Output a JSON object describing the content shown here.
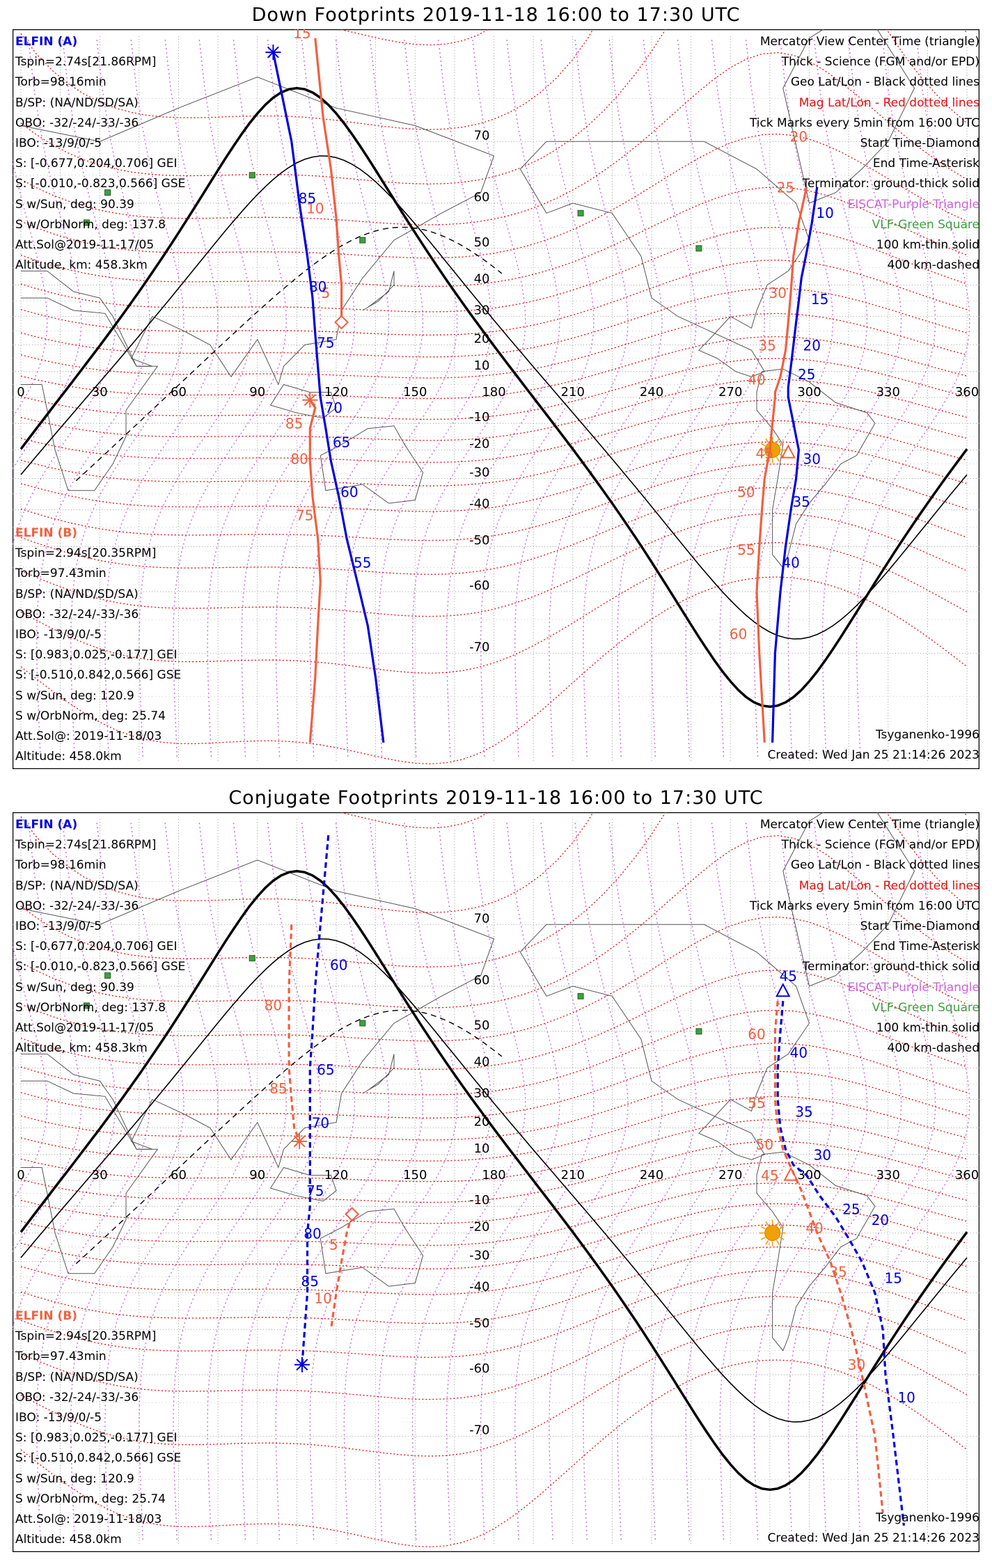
{
  "panels": [
    {
      "id": "down",
      "title": "Down Footprints 2019-11-18 16:00 to 17:30 UTC",
      "elfin_a": {
        "name": "ELFIN (A)",
        "tspin": "Tspin=2.74s[21.86RPM]",
        "torb": "Torb=98.16min",
        "bsp": "B/SP: (NA/ND/SD/SA)",
        "obo": "OBO: -32/-24/-33/-36",
        "ibo": "IBO: -13/9/0/-5",
        "s_gei": "S: [-0.677,0.204,0.706] GEI",
        "s_gse": "S: [-0.010,-0.823,0.566] GSE",
        "s_sun": "S w/Sun, deg: 90.39",
        "s_orb": "S w/OrbNorm, deg: 137.8",
        "attsol": "Att.Sol@2019-11-17/05",
        "alt": "Altitude, km: 458.3km"
      },
      "elfin_b": {
        "name": "ELFIN (B)",
        "tspin": "Tspin=2.94s[20.35RPM]",
        "torb": "Torb=97.43min",
        "bsp": "B/SP: (NA/ND/SD/SA)",
        "obo": "OBO: -32/-24/-33/-36",
        "ibo": "IBO: -13/9/0/-5",
        "s_gei": "S: [0.983,0.025,-0.177] GEI",
        "s_gse": "S: [-0.510,0.842,0.566] GSE",
        "s_sun": "S w/Sun, deg: 120.9",
        "s_orb": "S w/OrbNorm, deg: 25.74",
        "attsol": "Att.Sol@: 2019-11-18/03",
        "alt": "Altitude: 458.0km"
      },
      "legend": {
        "l1": "Mercator View Center Time (triangle)",
        "l2": "Thick - Science (FGM and/or EPD)",
        "l3": "Geo Lat/Lon - Black dotted lines",
        "l4": "Mag Lat/Lon - Red dotted lines",
        "l5": "Tick Marks every 5min from 16:00 UTC",
        "l6": "Start Time-Diamond",
        "l7": "End Time-Asterisk",
        "l8": "Terminator: ground-thick solid",
        "l9": "EISCAT-Purple Triangle",
        "l10": "VLF-Green Square",
        "l11": "100 km-thin solid",
        "l12": "400 km-dashed"
      },
      "model": "Tsyganenko-1996",
      "created": "Created: Wed Jan 25 21:14:26 2023"
    },
    {
      "id": "conjugate",
      "title": "Conjugate Footprints 2019-11-18 16:00 to 17:30 UTC",
      "elfin_a": {
        "name": "ELFIN (A)",
        "tspin": "Tspin=2.74s[21.86RPM]",
        "torb": "Torb=98.16min",
        "bsp": "B/SP: (NA/ND/SD/SA)",
        "obo": "OBO: -32/-24/-33/-36",
        "ibo": "IBO: -13/9/0/-5",
        "s_gei": "S: [-0.677,0.204,0.706] GEI",
        "s_gse": "S: [-0.010,-0.823,0.566] GSE",
        "s_sun": "S w/Sun, deg: 90.39",
        "s_orb": "S w/OrbNorm, deg: 137.8",
        "attsol": "Att.Sol@2019-11-17/05",
        "alt": "Altitude, km: 458.3km"
      },
      "elfin_b": {
        "name": "ELFIN (B)",
        "tspin": "Tspin=2.94s[20.35RPM]",
        "torb": "Torb=97.43min",
        "bsp": "B/SP: (NA/ND/SD/SA)",
        "obo": "OBO: -32/-24/-33/-36",
        "ibo": "IBO: -13/9/0/-5",
        "s_gei": "S: [0.983,0.025,-0.177] GEI",
        "s_gse": "S: [-0.510,0.842,0.566] GSE",
        "s_sun": "S w/Sun, deg: 120.9",
        "s_orb": "S w/OrbNorm, deg: 25.74",
        "attsol": "Att.Sol@: 2019-11-18/03",
        "alt": "Altitude: 458.0km"
      },
      "legend": {
        "l1": "Mercator View Center Time (triangle)",
        "l2": "Thick - Science (FGM and/or EPD)",
        "l3": "Geo Lat/Lon - Black dotted lines",
        "l4": "Mag Lat/Lon - Red dotted lines",
        "l5": "Tick Marks every 5min from 16:00 UTC",
        "l6": "Start Time-Diamond",
        "l7": "End Time-Asterisk",
        "l8": "Terminator: ground-thick solid",
        "l9": "EISCAT-Purple Triangle",
        "l10": "VLF-Green Square",
        "l11": "100 km-thin solid",
        "l12": "400 km-dashed"
      },
      "model": "Tsyganenko-1996",
      "created": "Created: Wed Jan 25 21:14:26 2023"
    }
  ],
  "axes": {
    "lon_ticks": [
      0,
      30,
      60,
      90,
      120,
      150,
      180,
      210,
      240,
      270,
      300,
      330,
      360
    ],
    "lat_ticks": [
      70,
      60,
      50,
      40,
      30,
      20,
      10,
      -10,
      -20,
      -30,
      -40,
      -50,
      -60,
      -70
    ]
  },
  "colors": {
    "elfin_a": "#0000dd",
    "elfin_b": "#f06040",
    "mag_grid": "#e01010",
    "eiscat": "#cc66dd",
    "vlf": "#40a040",
    "sun": "#f0a000"
  },
  "vlf_stations": [
    {
      "lon": 88,
      "lat": 65
    },
    {
      "lon": 33,
      "lat": 62
    },
    {
      "lon": 25,
      "lat": 56
    },
    {
      "lon": 130,
      "lat": 52
    },
    {
      "lon": 213,
      "lat": 58
    },
    {
      "lon": 258,
      "lat": 50
    }
  ],
  "down_tracks": {
    "a": {
      "points": [
        [
          96,
          79
        ],
        [
          103,
          70
        ],
        [
          106,
          60
        ],
        [
          109,
          48
        ],
        [
          111,
          36
        ],
        [
          112,
          24
        ],
        [
          113,
          12
        ],
        [
          114,
          0
        ],
        [
          116,
          -12
        ],
        [
          118,
          -24
        ],
        [
          121,
          -36
        ],
        [
          124,
          -48
        ],
        [
          128,
          -58
        ],
        [
          132,
          -66
        ],
        [
          135,
          -73
        ],
        [
          138,
          -79
        ]
      ],
      "ticks": [
        {
          "label": "85",
          "lon": 109,
          "lat": 60
        },
        {
          "label": "80",
          "lon": 113,
          "lat": 38
        },
        {
          "label": "75",
          "lon": 116,
          "lat": 19
        },
        {
          "label": "70",
          "lon": 119,
          "lat": -6
        },
        {
          "label": "65",
          "lon": 122,
          "lat": -19
        },
        {
          "label": "60",
          "lon": 125,
          "lat": -36
        },
        {
          "label": "55",
          "lon": 130,
          "lat": -55
        }
      ]
    },
    "b": {
      "points": [
        [
          110,
          -79
        ],
        [
          112,
          -73
        ],
        [
          113,
          -66
        ],
        [
          114,
          -58
        ],
        [
          113,
          -48
        ],
        [
          111,
          -36
        ],
        [
          110,
          -24
        ],
        [
          110,
          -12
        ],
        [
          112,
          -4
        ],
        [
          110,
          -1
        ]
      ],
      "ticks": [
        {
          "label": "85",
          "lon": 104,
          "lat": -12
        },
        {
          "label": "80",
          "lon": 106,
          "lat": -25
        },
        {
          "label": "75",
          "lon": 108,
          "lat": -43
        }
      ]
    },
    "a_sa": {
      "points": [
        [
          303,
          63
        ],
        [
          301,
          56
        ],
        [
          299,
          49
        ],
        [
          297,
          42
        ],
        [
          296,
          35
        ],
        [
          295,
          28
        ],
        [
          294,
          20
        ],
        [
          293,
          12
        ],
        [
          292,
          4
        ],
        [
          292,
          0
        ],
        [
          294,
          -10
        ],
        [
          296,
          -20
        ],
        [
          295,
          -30
        ],
        [
          293,
          -40
        ],
        [
          291,
          -50
        ],
        [
          289,
          -60
        ],
        [
          287,
          -70
        ],
        [
          286,
          -79
        ]
      ],
      "ticks": [
        {
          "label": "10",
          "lon": 306,
          "lat": 57
        },
        {
          "label": "15",
          "lon": 304,
          "lat": 34
        },
        {
          "label": "20",
          "lon": 301,
          "lat": 18
        },
        {
          "label": "25",
          "lon": 299,
          "lat": 7
        },
        {
          "label": "30",
          "lon": 301,
          "lat": -25
        },
        {
          "label": "35",
          "lon": 297,
          "lat": -39
        },
        {
          "label": "40",
          "lon": 293,
          "lat": -55
        }
      ]
    },
    "b_sa": {
      "points": [
        [
          112,
          80
        ],
        [
          115,
          73
        ],
        [
          118,
          66
        ],
        [
          120,
          57
        ],
        [
          121,
          48
        ],
        [
          122,
          40
        ],
        [
          122,
          32
        ],
        [
          122,
          28
        ]
      ],
      "ticks": [
        {
          "label": "15",
          "lon": 107,
          "lat": 80
        },
        {
          "label": "10",
          "lon": 112,
          "lat": 58
        },
        {
          "label": "5",
          "lon": 116,
          "lat": 36
        }
      ]
    },
    "b_sa2": {
      "points": [
        [
          283,
          -79
        ],
        [
          281,
          -70
        ],
        [
          280,
          -60
        ],
        [
          281,
          -50
        ],
        [
          282,
          -40
        ],
        [
          283,
          -30
        ],
        [
          285,
          -20
        ],
        [
          286,
          -10
        ],
        [
          287,
          0
        ],
        [
          287,
          2
        ],
        [
          289,
          8
        ],
        [
          291,
          18
        ],
        [
          292,
          28
        ],
        [
          293,
          38
        ],
        [
          294,
          48
        ],
        [
          296,
          56
        ],
        [
          299,
          63
        ]
      ],
      "ticks": [
        {
          "label": "60",
          "lon": 273,
          "lat": -68
        },
        {
          "label": "55",
          "lon": 276,
          "lat": -52
        },
        {
          "label": "50",
          "lon": 276,
          "lat": -36
        },
        {
          "label": "45",
          "lon": 283,
          "lat": -23
        },
        {
          "label": "40",
          "lon": 280,
          "lat": 5
        },
        {
          "label": "35",
          "lon": 284,
          "lat": 18
        },
        {
          "label": "30",
          "lon": 288,
          "lat": 36
        },
        {
          "label": "25",
          "lon": 291,
          "lat": 62
        },
        {
          "label": "20",
          "lon": 296,
          "lat": 70
        }
      ]
    }
  },
  "conj_tracks": {
    "a": {
      "points": [
        [
          117,
          79
        ],
        [
          114,
          70
        ],
        [
          112,
          60
        ],
        [
          111,
          50
        ],
        [
          110,
          40
        ],
        [
          110,
          30
        ],
        [
          110,
          20
        ],
        [
          110,
          10
        ],
        [
          110,
          0
        ],
        [
          110,
          -10
        ],
        [
          109,
          -20
        ],
        [
          109,
          -30
        ],
        [
          109,
          -40
        ],
        [
          108,
          -50
        ],
        [
          107,
          -58
        ]
      ],
      "ticks": [
        {
          "label": "60",
          "lon": 121,
          "lat": 63
        },
        {
          "label": "65",
          "lon": 116,
          "lat": 38
        },
        {
          "label": "70",
          "lon": 114,
          "lat": 20
        },
        {
          "label": "75",
          "lon": 112,
          "lat": -6
        },
        {
          "label": "80",
          "lon": 111,
          "lat": -22
        },
        {
          "label": "85",
          "lon": 110,
          "lat": -38
        }
      ]
    },
    "b": {
      "points": [
        [
          103,
          70
        ],
        [
          102,
          60
        ],
        [
          102,
          50
        ],
        [
          102,
          40
        ],
        [
          103,
          30
        ],
        [
          104,
          20
        ],
        [
          106,
          15
        ]
      ],
      "ticks": [
        {
          "label": "80",
          "lon": 96,
          "lat": 55
        },
        {
          "label": "85",
          "lon": 98,
          "lat": 32
        }
      ]
    },
    "b2": {
      "points": [
        [
          126,
          -13
        ],
        [
          124,
          -20
        ],
        [
          122,
          -30
        ],
        [
          120,
          -40
        ],
        [
          118,
          -50
        ]
      ],
      "ticks": [
        {
          "label": "5",
          "lon": 119,
          "lat": -26
        },
        {
          "label": "10",
          "lon": 115,
          "lat": -43
        }
      ]
    },
    "a_sa": {
      "points": [
        [
          290,
          57
        ],
        [
          289,
          50
        ],
        [
          288,
          40
        ],
        [
          288,
          30
        ],
        [
          289,
          20
        ],
        [
          291,
          12
        ],
        [
          294,
          6
        ],
        [
          299,
          2
        ],
        [
          304,
          -6
        ],
        [
          310,
          -14
        ],
        [
          315,
          -22
        ],
        [
          320,
          -30
        ],
        [
          325,
          -40
        ],
        [
          328,
          -50
        ],
        [
          329,
          -60
        ],
        [
          332,
          -70
        ],
        [
          336,
          -79
        ]
      ],
      "ticks": [
        {
          "label": "45",
          "lon": 292,
          "lat": 61
        },
        {
          "label": "40",
          "lon": 296,
          "lat": 43
        },
        {
          "label": "35",
          "lon": 298,
          "lat": 24
        },
        {
          "label": "30",
          "lon": 305,
          "lat": 8
        },
        {
          "label": "25",
          "lon": 316,
          "lat": -13
        },
        {
          "label": "20",
          "lon": 327,
          "lat": -17
        },
        {
          "label": "15",
          "lon": 332,
          "lat": -37
        },
        {
          "label": "10",
          "lon": 337,
          "lat": -65
        }
      ]
    },
    "b_sa": {
      "points": [
        [
          288,
          57
        ],
        [
          287,
          50
        ],
        [
          287,
          40
        ],
        [
          287,
          30
        ],
        [
          288,
          20
        ],
        [
          290,
          12
        ],
        [
          293,
          5
        ],
        [
          297,
          -4
        ],
        [
          300,
          -12
        ],
        [
          303,
          -20
        ],
        [
          308,
          -30
        ],
        [
          312,
          -40
        ],
        [
          316,
          -50
        ],
        [
          320,
          -60
        ],
        [
          325,
          -70
        ],
        [
          328,
          -78
        ]
      ],
      "ticks": [
        {
          "label": "60",
          "lon": 280,
          "lat": 48
        },
        {
          "label": "55",
          "lon": 280,
          "lat": 27
        },
        {
          "label": "50",
          "lon": 283,
          "lat": 12
        },
        {
          "label": "45",
          "lon": 285,
          "lat": 0
        },
        {
          "label": "40",
          "lon": 302,
          "lat": -20
        },
        {
          "label": "35",
          "lon": 311,
          "lat": -35
        },
        {
          "label": "30",
          "lon": 318,
          "lat": -59
        }
      ]
    }
  }
}
